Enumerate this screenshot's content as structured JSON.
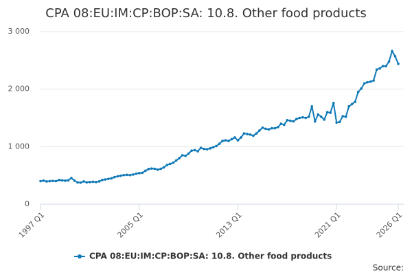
{
  "chart_data": {
    "type": "line",
    "title": "CPA 08:EU:IM:CP:BOP:SA: 10.8. Other food products",
    "source": "Source:",
    "categories": [
      "1997 Q1",
      null,
      null,
      null,
      null,
      null,
      null,
      null,
      null,
      null,
      null,
      null,
      null,
      null,
      null,
      null,
      null,
      null,
      null,
      null,
      null,
      null,
      null,
      null,
      null,
      null,
      null,
      null,
      null,
      null,
      null,
      null,
      "2005 Q1",
      null,
      null,
      null,
      null,
      null,
      null,
      null,
      null,
      null,
      null,
      null,
      null,
      null,
      null,
      null,
      null,
      null,
      null,
      null,
      null,
      null,
      null,
      null,
      null,
      null,
      null,
      null,
      null,
      null,
      null,
      null,
      "2013 Q1",
      null,
      null,
      null,
      null,
      null,
      null,
      null,
      null,
      null,
      null,
      null,
      null,
      null,
      null,
      null,
      null,
      null,
      null,
      null,
      null,
      null,
      null,
      null,
      null,
      null,
      null,
      null,
      null,
      null,
      null,
      null,
      "2021 Q1",
      null,
      null,
      null,
      null,
      null,
      null,
      null,
      null,
      null,
      null,
      null,
      null,
      null,
      null,
      null,
      null,
      null,
      null,
      null,
      "2026 Q1"
    ],
    "series": [
      {
        "name": "CPA 08:EU:IM:CP:BOP:SA: 10.8. Other food products",
        "color": "#0f78b6",
        "values": [
          400,
          410,
          395,
          400,
          405,
          400,
          420,
          415,
          410,
          415,
          455,
          410,
          380,
          375,
          395,
          380,
          385,
          390,
          385,
          395,
          420,
          430,
          440,
          450,
          470,
          485,
          495,
          505,
          510,
          505,
          515,
          530,
          540,
          545,
          580,
          610,
          620,
          615,
          600,
          615,
          640,
          680,
          700,
          720,
          760,
          800,
          850,
          840,
          880,
          930,
          940,
          920,
          980,
          960,
          955,
          970,
          990,
          1010,
          1050,
          1100,
          1110,
          1100,
          1130,
          1160,
          1110,
          1160,
          1230,
          1220,
          1210,
          1190,
          1230,
          1280,
          1330,
          1310,
          1300,
          1320,
          1320,
          1340,
          1400,
          1380,
          1460,
          1450,
          1440,
          1480,
          1500,
          1510,
          1500,
          1520,
          1700,
          1440,
          1560,
          1520,
          1470,
          1600,
          1590,
          1760,
          1420,
          1430,
          1530,
          1520,
          1700,
          1740,
          1780,
          1950,
          2010,
          2100,
          2120,
          2130,
          2150,
          2340,
          2360,
          2400,
          2400,
          2480,
          2660,
          2570,
          2440
        ]
      }
    ],
    "ylim": [
      0,
      3000
    ],
    "yticks": [
      {
        "value": 0,
        "label": "0"
      },
      {
        "value": 1000,
        "label": "1 000"
      },
      {
        "value": 2000,
        "label": "2 000"
      },
      {
        "value": 3000,
        "label": "3 000"
      }
    ],
    "grid": true
  }
}
